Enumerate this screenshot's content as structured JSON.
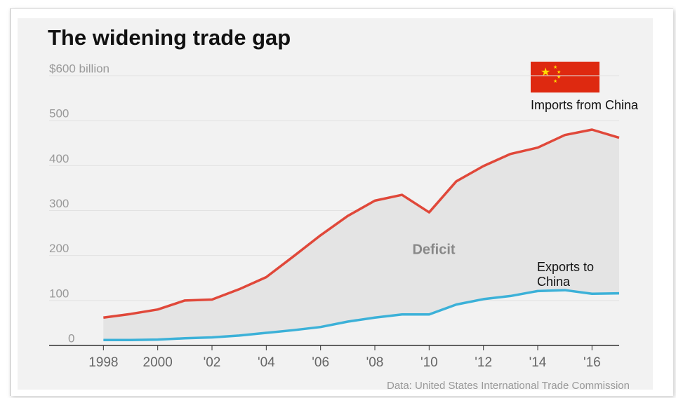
{
  "chart_data": {
    "type": "line",
    "title": "The widening trade gap",
    "annotation": "Deficit",
    "source": "Data: United States International Trade Commission",
    "x": [
      1998,
      1999,
      2000,
      2001,
      2002,
      2003,
      2004,
      2005,
      2006,
      2007,
      2008,
      2009,
      2010,
      2011,
      2012,
      2013,
      2014,
      2015,
      2016,
      2017
    ],
    "series": [
      {
        "name": "Imports from China",
        "color": "#e0483a",
        "values": [
          62,
          70,
          80,
          100,
          102,
          125,
          152,
          198,
          245,
          288,
          322,
          335,
          296,
          365,
          399,
          426,
          440,
          468,
          480,
          462
        ]
      },
      {
        "name": "Exports to China",
        "color": "#3cb1d8",
        "values": [
          12,
          12,
          13,
          16,
          18,
          22,
          28,
          34,
          41,
          53,
          62,
          69,
          69,
          91,
          103,
          110,
          121,
          123,
          115,
          116
        ]
      }
    ],
    "xlim": [
      1996,
      2017
    ],
    "xticks": [
      1998,
      2000,
      {
        "value": 2002,
        "label": "'02"
      },
      {
        "value": 2004,
        "label": "'04"
      },
      {
        "value": 2006,
        "label": "'06"
      },
      {
        "value": 2008,
        "label": "'08"
      },
      {
        "value": 2010,
        "label": "'10"
      },
      {
        "value": 2012,
        "label": "'12"
      },
      {
        "value": 2014,
        "label": "'14"
      },
      {
        "value": 2016,
        "label": "'16"
      }
    ],
    "ylim": [
      0,
      600
    ],
    "yticks": [
      0,
      100,
      200,
      300,
      400,
      500,
      {
        "value": 600,
        "label": "$600 billion"
      }
    ],
    "grid": true
  }
}
